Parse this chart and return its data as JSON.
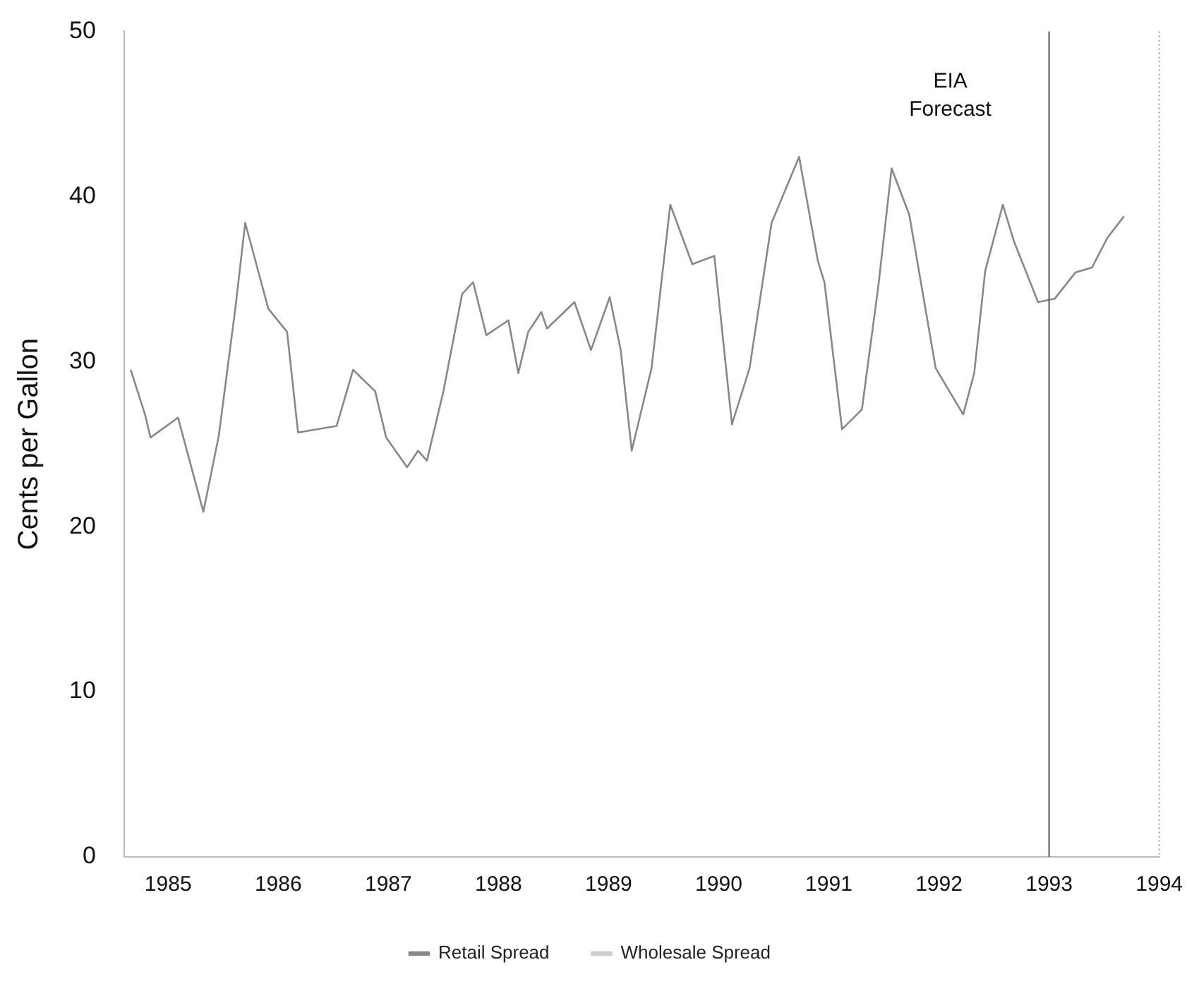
{
  "chart_data": {
    "type": "line",
    "ylabel": "Cents per Gallon",
    "xlim": [
      1984.6,
      1994
    ],
    "xticks": [
      1985,
      1986,
      1987,
      1988,
      1989,
      1990,
      1991,
      1992,
      1993,
      1994
    ],
    "ylim": [
      0,
      50
    ],
    "yticks": [
      0,
      10,
      20,
      30,
      40,
      50
    ],
    "grid": false,
    "legend": "bottom",
    "marker": "none",
    "line_style": "solid",
    "ref_lines": [
      {
        "axis": "x",
        "value": 1993,
        "label": "EIA Forecast",
        "color": "#555555"
      }
    ],
    "series": [
      {
        "name": "Retail Spread",
        "color": "#888888",
        "x": [
          1984.66,
          1984.79,
          1984.84,
          1985.09,
          1985.32,
          1985.46,
          1985.61,
          1985.7,
          1985.91,
          1986.08,
          1986.18,
          1986.53,
          1986.68,
          1986.88,
          1986.98,
          1987.17,
          1987.27,
          1987.35,
          1987.5,
          1987.67,
          1987.77,
          1987.89,
          1988.09,
          1988.18,
          1988.27,
          1988.39,
          1988.44,
          1988.69,
          1988.84,
          1989.01,
          1989.11,
          1989.21,
          1989.39,
          1989.56,
          1989.76,
          1989.96,
          1990.12,
          1990.28,
          1990.48,
          1990.73,
          1990.9,
          1990.96,
          1991.12,
          1991.3,
          1991.45,
          1991.57,
          1991.73,
          1991.97,
          1992.22,
          1992.32,
          1992.42,
          1992.58,
          1992.68,
          1992.9,
          1993.05,
          1993.24,
          1993.39,
          1993.53,
          1993.68
        ],
        "values": [
          29.5,
          26.8,
          25.4,
          26.6,
          20.9,
          25.5,
          33.2,
          38.4,
          33.2,
          31.8,
          25.7,
          26.1,
          29.5,
          28.2,
          25.4,
          23.6,
          24.6,
          24,
          28.2,
          34.1,
          34.8,
          31.6,
          32.5,
          29.3,
          31.8,
          33,
          32,
          33.6,
          30.7,
          33.9,
          30.7,
          24.6,
          29.6,
          39.5,
          35.9,
          36.4,
          26.2,
          29.6,
          38.4,
          42.4,
          36.1,
          34.8,
          25.9,
          27.1,
          34.6,
          41.7,
          38.9,
          29.6,
          26.8,
          29.3,
          35.5,
          39.5,
          37.3,
          33.6,
          33.8,
          35.4,
          35.7,
          37.5,
          38.8
        ]
      },
      {
        "name": "Wholesale Spread",
        "color": "#cccccc"
      }
    ]
  }
}
